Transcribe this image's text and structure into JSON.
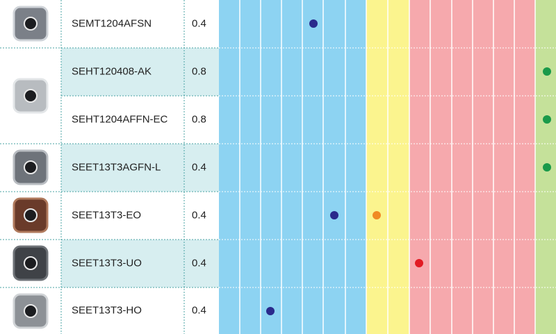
{
  "table": {
    "rows": [
      {
        "name": "SEMT1204AFSN",
        "radius": 0.4
      },
      {
        "name": "SEHT120408-AK",
        "radius": 0.8
      },
      {
        "name": "SEHT1204AFFN-EC",
        "radius": 0.8
      },
      {
        "name": "SEET13T3AGFN-L",
        "radius": 0.4
      },
      {
        "name": "SEET13T3-EO",
        "radius": 0.4
      },
      {
        "name": "SEET13T3-UO",
        "radius": 0.4
      },
      {
        "name": "SEET13T3-HO",
        "radius": 0.4
      }
    ]
  }
}
